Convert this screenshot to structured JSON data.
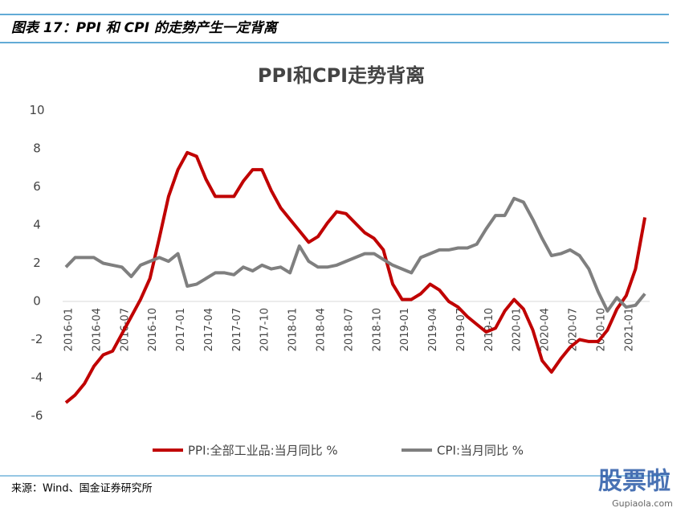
{
  "header": {
    "title": "图表 17：PPI 和 CPI 的走势产生一定背离"
  },
  "chart_data": {
    "type": "line",
    "title": "PPI和CPI走势背离",
    "categories": [
      "2016-01",
      null,
      null,
      "2016-04",
      null,
      null,
      "2016-07",
      null,
      null,
      "2016-10",
      null,
      null,
      "2017-01",
      null,
      null,
      "2017-04",
      null,
      null,
      "2017-07",
      null,
      null,
      "2017-10",
      null,
      null,
      "2018-01",
      null,
      null,
      "2018-04",
      null,
      null,
      "2018-07",
      null,
      null,
      "2018-10",
      null,
      null,
      "2019-01",
      null,
      null,
      "2019-04",
      null,
      null,
      "2019-07",
      null,
      null,
      "2019-10",
      null,
      null,
      "2020-01",
      null,
      null,
      "2020-04",
      null,
      null,
      "2020-07",
      null,
      null,
      "2020-10",
      null,
      null,
      "2021-01",
      null,
      null
    ],
    "series": [
      {
        "name": "PPI:全部工业品:当月同比 %",
        "color": "#c00000",
        "values": [
          -5.3,
          -4.9,
          -4.3,
          -3.4,
          -2.8,
          -2.6,
          -1.7,
          -0.8,
          0.1,
          1.2,
          3.3,
          5.5,
          6.9,
          7.8,
          7.6,
          6.4,
          5.5,
          5.5,
          5.5,
          6.3,
          6.9,
          6.9,
          5.8,
          4.9,
          4.3,
          3.7,
          3.1,
          3.4,
          4.1,
          4.7,
          4.6,
          4.1,
          3.6,
          3.3,
          2.7,
          0.9,
          0.1,
          0.1,
          0.4,
          0.9,
          0.6,
          0.0,
          -0.3,
          -0.8,
          -1.2,
          -1.6,
          -1.4,
          -0.5,
          0.1,
          -0.4,
          -1.5,
          -3.1,
          -3.7,
          -3.0,
          -2.4,
          -2.0,
          -2.1,
          -2.1,
          -1.5,
          -0.4,
          0.3,
          1.7,
          4.4
        ]
      },
      {
        "name": "CPI:当月同比 %",
        "color": "#7f7f7f",
        "values": [
          1.8,
          2.3,
          2.3,
          2.3,
          2.0,
          1.9,
          1.8,
          1.3,
          1.9,
          2.1,
          2.3,
          2.1,
          2.5,
          0.8,
          0.9,
          1.2,
          1.5,
          1.5,
          1.4,
          1.8,
          1.6,
          1.9,
          1.7,
          1.8,
          1.5,
          2.9,
          2.1,
          1.8,
          1.8,
          1.9,
          2.1,
          2.3,
          2.5,
          2.5,
          2.2,
          1.9,
          1.7,
          1.5,
          2.3,
          2.5,
          2.7,
          2.7,
          2.8,
          2.8,
          3.0,
          3.8,
          4.5,
          4.5,
          5.4,
          5.2,
          4.3,
          3.3,
          2.4,
          2.5,
          2.7,
          2.4,
          1.7,
          0.5,
          -0.5,
          0.2,
          -0.3,
          -0.2,
          0.4
        ]
      }
    ],
    "ylim": [
      -6,
      10
    ],
    "yticks": [
      -6,
      -4,
      -2,
      0,
      2,
      4,
      6,
      8,
      10
    ],
    "grid": false,
    "legend": "bottom"
  },
  "footer": {
    "source": "来源：Wind、国金证券研究所",
    "watermark": "股票啦",
    "watermark_url": "Gupiaola.com"
  }
}
